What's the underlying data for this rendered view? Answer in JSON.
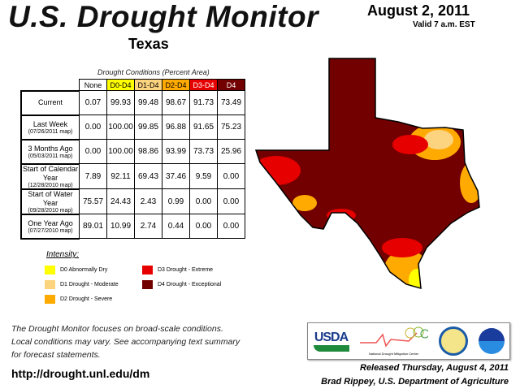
{
  "header": {
    "title": "U.S. Drought Monitor",
    "region": "Texas",
    "date": "August 2, 2011",
    "valid": "Valid 7 a.m. EST"
  },
  "table": {
    "caption": "Drought Conditions (Percent Area)",
    "columns": [
      {
        "label": "None",
        "color": "#ffffff"
      },
      {
        "label": "D0-D4",
        "color": "#ffff00"
      },
      {
        "label": "D1-D4",
        "color": "#fcd37f"
      },
      {
        "label": "D2-D4",
        "color": "#ffaa00"
      },
      {
        "label": "D3-D4",
        "color": "#e60000"
      },
      {
        "label": "D4",
        "color": "#730000"
      }
    ],
    "rows": [
      {
        "label": "Current",
        "sub": "",
        "values": [
          "0.07",
          "99.93",
          "99.48",
          "98.67",
          "91.73",
          "73.49"
        ]
      },
      {
        "label": "Last Week",
        "sub": "(07/26/2011 map)",
        "values": [
          "0.00",
          "100.00",
          "99.85",
          "96.88",
          "91.65",
          "75.23"
        ]
      },
      {
        "label": "3 Months Ago",
        "sub": "(05/03/2011 map)",
        "values": [
          "0.00",
          "100.00",
          "98.86",
          "93.99",
          "73.73",
          "25.96"
        ]
      },
      {
        "label": "Start of Calendar Year",
        "sub": "(12/28/2010 map)",
        "values": [
          "7.89",
          "92.11",
          "69.43",
          "37.46",
          "9.59",
          "0.00"
        ]
      },
      {
        "label": "Start of Water Year",
        "sub": "(09/28/2010 map)",
        "values": [
          "75.57",
          "24.43",
          "2.43",
          "0.99",
          "0.00",
          "0.00"
        ]
      },
      {
        "label": "One Year Ago",
        "sub": "(07/27/2010 map)",
        "values": [
          "89.01",
          "10.99",
          "2.74",
          "0.44",
          "0.00",
          "0.00"
        ]
      }
    ]
  },
  "legend": {
    "title": "Intensity:",
    "items": [
      {
        "label": "D0 Abnormally Dry",
        "color": "#ffff00"
      },
      {
        "label": "D1 Drought - Moderate",
        "color": "#fcd37f"
      },
      {
        "label": "D2 Drought - Severe",
        "color": "#ffaa00"
      },
      {
        "label": "D3 Drought - Extreme",
        "color": "#e60000"
      },
      {
        "label": "D4 Drought - Exceptional",
        "color": "#730000"
      }
    ]
  },
  "footer": {
    "note": [
      "The Drought Monitor focuses on broad-scale conditions.",
      "Local conditions may vary. See accompanying text summary",
      "for forecast statements."
    ],
    "url": "http://drought.unl.edu/dm",
    "released": "Released Thursday, August 4, 2011",
    "author": "Brad Rippey, U.S. Department of Agriculture",
    "logos": {
      "usda": "USDA",
      "ndmc": "National Drought Mitigation Center"
    }
  }
}
